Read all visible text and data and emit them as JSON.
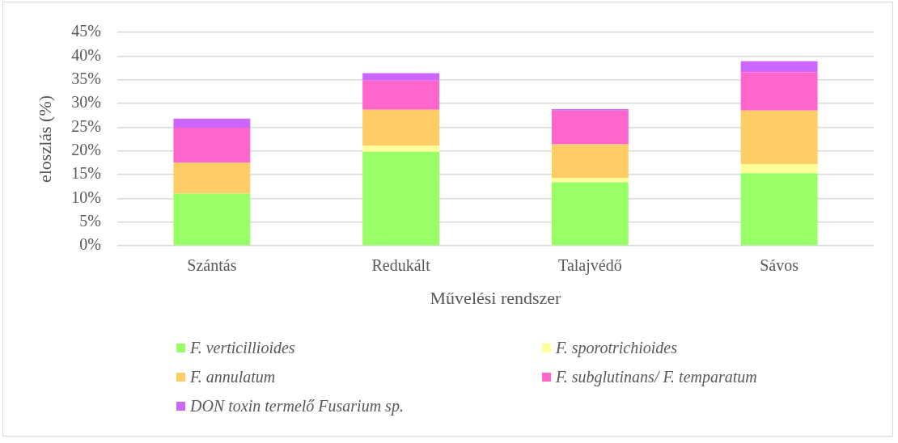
{
  "chart_data": {
    "type": "bar",
    "stacked": true,
    "xlabel": "Művelési rendszer",
    "ylabel": "eloszlás (%)",
    "categories": [
      "Szántás",
      "Redukált",
      "Talajvédő",
      "Sávos"
    ],
    "series": [
      {
        "name": "F. verticillioides",
        "color": "#99ff66",
        "values": [
          11.0,
          19.8,
          13.4,
          15.3
        ]
      },
      {
        "name": "F. sporotrichioides",
        "color": "#ffff99",
        "values": [
          0,
          1.3,
          0.9,
          1.9
        ]
      },
      {
        "name": "F. annulatum",
        "color": "#ffcc66",
        "values": [
          6.5,
          7.6,
          7.1,
          11.3
        ]
      },
      {
        "name": "F. subglutinans/ F. temparatum",
        "color": "#ff66cc",
        "values": [
          7.4,
          6.1,
          7.1,
          8.1
        ]
      },
      {
        "name": "DON toxin termelő Fusarium sp.",
        "color": "#cc66ff",
        "values": [
          1.9,
          1.6,
          0.3,
          2.3
        ]
      }
    ],
    "ylim": [
      0,
      45
    ],
    "yticks": [
      {
        "value": 0,
        "label": "0%"
      },
      {
        "value": 5,
        "label": "5%"
      },
      {
        "value": 10,
        "label": "10%"
      },
      {
        "value": 15,
        "label": "15%"
      },
      {
        "value": 20,
        "label": "20%"
      },
      {
        "value": 25,
        "label": "25%"
      },
      {
        "value": 30,
        "label": "30%"
      },
      {
        "value": 35,
        "label": "35%"
      },
      {
        "value": 40,
        "label": "40%"
      },
      {
        "value": 45,
        "label": "45%"
      }
    ],
    "grid": "y",
    "legend": "bottom"
  }
}
